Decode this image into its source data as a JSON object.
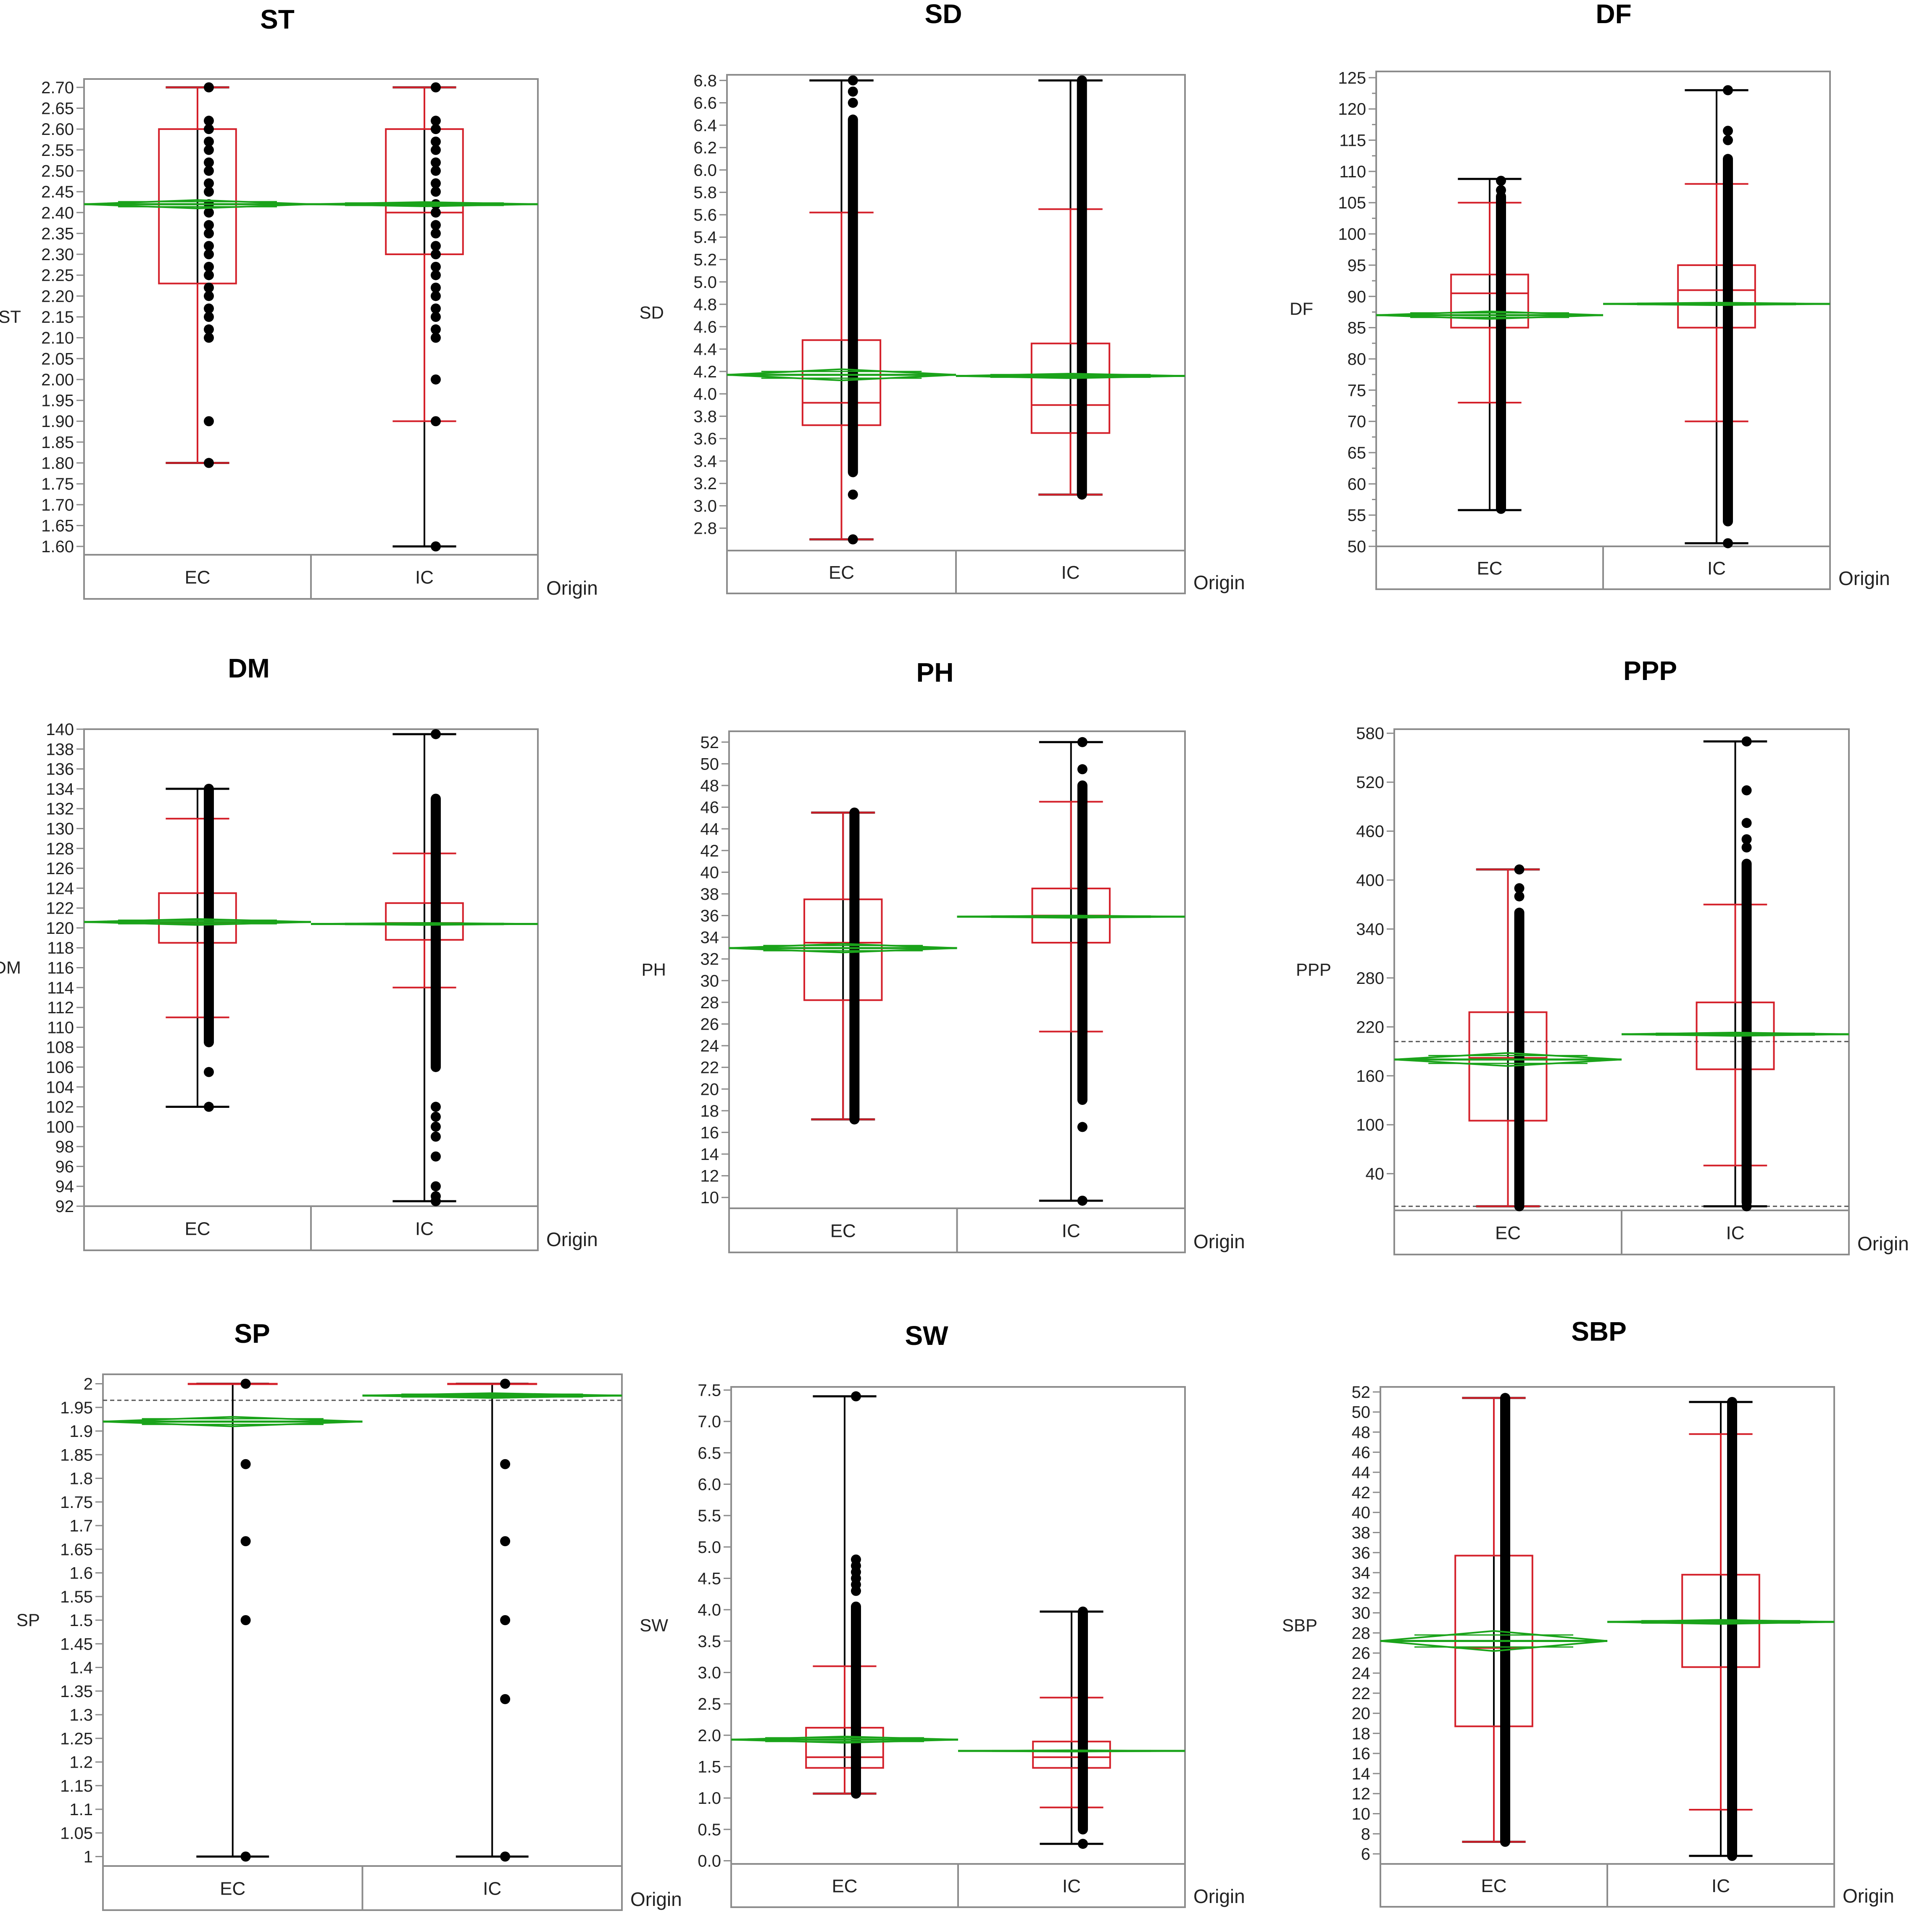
{
  "figure": {
    "group_axis_label": "Origin",
    "groups": [
      "EC",
      "IC"
    ]
  },
  "colors": {
    "box": "#d4202a",
    "whisker_box": "#d4202a",
    "whisker_outer": "#000000",
    "diamond": "#1aa31a",
    "point": "#000000",
    "frame": "#8c8c8c",
    "dashed": "#555555"
  },
  "chart_data": [
    {
      "type": "boxplot",
      "title": "ST",
      "ylabel": "ST",
      "xlabel": "Origin",
      "categories": [
        "EC",
        "IC"
      ],
      "ylim": [
        1.58,
        2.72
      ],
      "yticks": [
        1.6,
        1.65,
        1.7,
        1.75,
        1.8,
        1.85,
        1.9,
        1.95,
        2.0,
        2.05,
        2.1,
        2.15,
        2.2,
        2.25,
        2.3,
        2.35,
        2.4,
        2.45,
        2.5,
        2.55,
        2.6,
        2.65,
        2.7
      ],
      "tick_decimals": 2,
      "major_every": 1,
      "ref_lines": [],
      "series": [
        {
          "name": "EC",
          "min": 1.8,
          "q1": 2.23,
          "median": 2.42,
          "q3": 2.6,
          "max": 2.7,
          "wlow": 1.8,
          "whigh": 2.7,
          "mean": 2.42,
          "ci_low": 2.41,
          "ci_high": 2.43,
          "points": [
            1.8,
            1.9,
            2.1,
            2.12,
            2.15,
            2.17,
            2.2,
            2.22,
            2.25,
            2.27,
            2.3,
            2.32,
            2.35,
            2.37,
            2.4,
            2.42,
            2.45,
            2.47,
            2.5,
            2.52,
            2.55,
            2.57,
            2.6,
            2.62,
            2.7
          ]
        },
        {
          "name": "IC",
          "min": 1.6,
          "q1": 2.3,
          "median": 2.4,
          "q3": 2.6,
          "max": 2.7,
          "wlow": 1.9,
          "whigh": 2.7,
          "mean": 2.42,
          "ci_low": 2.415,
          "ci_high": 2.425,
          "points": [
            1.6,
            1.9,
            2.0,
            2.1,
            2.12,
            2.15,
            2.17,
            2.2,
            2.22,
            2.25,
            2.27,
            2.3,
            2.32,
            2.35,
            2.37,
            2.4,
            2.42,
            2.45,
            2.47,
            2.5,
            2.52,
            2.55,
            2.57,
            2.6,
            2.62,
            2.7
          ]
        }
      ]
    },
    {
      "type": "boxplot",
      "title": "SD",
      "ylabel": "SD",
      "xlabel": "Origin",
      "categories": [
        "EC",
        "IC"
      ],
      "ylim": [
        2.6,
        6.85
      ],
      "yticks": [
        2.8,
        3.0,
        3.2,
        3.4,
        3.6,
        3.8,
        4.0,
        4.2,
        4.4,
        4.6,
        4.8,
        5.0,
        5.2,
        5.4,
        5.6,
        5.8,
        6.0,
        6.2,
        6.4,
        6.6,
        6.8
      ],
      "tick_decimals": 1,
      "major_every": 1,
      "ref_lines": [],
      "series": [
        {
          "name": "EC",
          "min": 2.7,
          "q1": 3.72,
          "median": 3.92,
          "q3": 4.48,
          "max": 6.8,
          "wlow": 2.7,
          "whigh": 5.62,
          "mean": 4.17,
          "ci_low": 4.12,
          "ci_high": 4.22,
          "point_bands": [
            [
              3.3,
              6.45
            ]
          ],
          "points": [
            2.7,
            3.1,
            6.6,
            6.7,
            6.8
          ]
        },
        {
          "name": "IC",
          "min": 3.1,
          "q1": 3.65,
          "median": 3.9,
          "q3": 4.45,
          "max": 6.8,
          "wlow": 3.1,
          "whigh": 5.65,
          "mean": 4.16,
          "ci_low": 4.14,
          "ci_high": 4.18,
          "point_bands": [
            [
              3.1,
              6.8
            ]
          ],
          "points": []
        }
      ]
    },
    {
      "type": "boxplot",
      "title": "DF",
      "ylabel": "DF",
      "xlabel": "Origin",
      "categories": [
        "EC",
        "IC"
      ],
      "ylim": [
        50,
        126
      ],
      "yticks": [
        50,
        52.5,
        55,
        57.5,
        60,
        62.5,
        65,
        67.5,
        70,
        72.5,
        75,
        77.5,
        80,
        82.5,
        85,
        87.5,
        90,
        92.5,
        95,
        97.5,
        100,
        102.5,
        105,
        107.5,
        110,
        112.5,
        115,
        117.5,
        120,
        122.5,
        125
      ],
      "tick_decimals": 0,
      "major_every": 2,
      "ref_lines": [],
      "series": [
        {
          "name": "EC",
          "min": 55.8,
          "q1": 85,
          "median": 90.5,
          "q3": 93.5,
          "max": 108.8,
          "wlow": 73,
          "whigh": 105,
          "mean": 87,
          "ci_low": 86.4,
          "ci_high": 87.6,
          "point_bands": [
            [
              56,
              106
            ]
          ],
          "points": [
            108.5,
            107
          ]
        },
        {
          "name": "IC",
          "min": 50.5,
          "q1": 85,
          "median": 91,
          "q3": 95,
          "max": 123,
          "wlow": 70,
          "whigh": 108,
          "mean": 88.8,
          "ci_low": 88.6,
          "ci_high": 89.0,
          "point_bands": [
            [
              54,
              112
            ]
          ],
          "points": [
            115,
            116.5,
            123,
            50.5
          ]
        }
      ]
    },
    {
      "type": "boxplot",
      "title": "DM",
      "ylabel": "DM",
      "xlabel": "Origin",
      "categories": [
        "EC",
        "IC"
      ],
      "ylim": [
        92,
        140
      ],
      "yticks": [
        92,
        94,
        96,
        98,
        100,
        102,
        104,
        106,
        108,
        110,
        112,
        114,
        116,
        118,
        120,
        122,
        124,
        126,
        128,
        130,
        132,
        134,
        136,
        138,
        140
      ],
      "tick_decimals": 0,
      "major_every": 1,
      "ref_lines": [],
      "series": [
        {
          "name": "EC",
          "min": 102,
          "q1": 118.5,
          "median": 120.5,
          "q3": 123.5,
          "max": 134,
          "wlow": 111,
          "whigh": 131,
          "mean": 120.6,
          "ci_low": 120.3,
          "ci_high": 120.9,
          "point_bands": [
            [
              108.5,
              134
            ]
          ],
          "points": [
            102,
            105.5
          ]
        },
        {
          "name": "IC",
          "min": 92.5,
          "q1": 118.8,
          "median": 120.5,
          "q3": 122.5,
          "max": 139.5,
          "wlow": 114,
          "whigh": 127.5,
          "mean": 120.4,
          "ci_low": 120.3,
          "ci_high": 120.5,
          "point_bands": [
            [
              106,
              133
            ]
          ],
          "points": [
            139.5,
            100,
            101,
            102,
            99,
            97,
            94,
            93,
            92.5
          ]
        }
      ]
    },
    {
      "type": "boxplot",
      "title": "PH",
      "ylabel": "PH",
      "xlabel": "Origin",
      "categories": [
        "EC",
        "IC"
      ],
      "ylim": [
        9,
        53
      ],
      "yticks": [
        10,
        12,
        14,
        16,
        18,
        20,
        22,
        24,
        26,
        28,
        30,
        32,
        34,
        36,
        38,
        40,
        42,
        44,
        46,
        48,
        50,
        52
      ],
      "tick_decimals": 0,
      "major_every": 1,
      "ref_lines": [],
      "series": [
        {
          "name": "EC",
          "min": 17.2,
          "q1": 28.2,
          "median": 33.5,
          "q3": 37.5,
          "max": 45.5,
          "wlow": 17.2,
          "whigh": 45.5,
          "mean": 33,
          "ci_low": 32.6,
          "ci_high": 33.4,
          "point_bands": [
            [
              17.2,
              45.5
            ]
          ],
          "points": []
        },
        {
          "name": "IC",
          "min": 9.7,
          "q1": 33.5,
          "median": 36,
          "q3": 38.5,
          "max": 52,
          "wlow": 25.3,
          "whigh": 46.5,
          "mean": 35.9,
          "ci_low": 35.8,
          "ci_high": 36.0,
          "point_bands": [
            [
              19,
              48
            ]
          ],
          "points": [
            49.5,
            52,
            16.5,
            9.7
          ]
        }
      ]
    },
    {
      "type": "boxplot",
      "title": "PPP",
      "ylabel": "PPP",
      "xlabel": "Origin",
      "categories": [
        "EC",
        "IC"
      ],
      "ylim": [
        -5,
        585
      ],
      "yticks": [
        40,
        100,
        160,
        220,
        280,
        340,
        400,
        460,
        520,
        580
      ],
      "tick_decimals": 0,
      "major_every": 1,
      "ref_lines": [
        202,
        0
      ],
      "series": [
        {
          "name": "EC",
          "min": 0,
          "q1": 105,
          "median": 182,
          "q3": 238,
          "max": 413,
          "wlow": 0,
          "whigh": 413,
          "mean": 180,
          "ci_low": 172,
          "ci_high": 188,
          "point_bands": [
            [
              3,
              360
            ]
          ],
          "points": [
            380,
            390,
            413,
            0
          ]
        },
        {
          "name": "IC",
          "min": 0,
          "q1": 168,
          "median": 210,
          "q3": 250,
          "max": 570,
          "wlow": 50,
          "whigh": 370,
          "mean": 211,
          "ci_low": 209,
          "ci_high": 213,
          "point_bands": [
            [
              5,
              420
            ]
          ],
          "points": [
            440,
            450,
            470,
            510,
            570,
            0
          ]
        }
      ]
    },
    {
      "type": "boxplot",
      "title": "SP",
      "ylabel": "SP",
      "xlabel": "Origin",
      "categories": [
        "EC",
        "IC"
      ],
      "ylim": [
        0.98,
        2.02
      ],
      "yticks": [
        1,
        1.05,
        1.1,
        1.15,
        1.2,
        1.25,
        1.3,
        1.35,
        1.4,
        1.45,
        1.5,
        1.55,
        1.6,
        1.65,
        1.7,
        1.75,
        1.8,
        1.85,
        1.9,
        1.95,
        2
      ],
      "tick_decimals": -1,
      "major_every": 1,
      "ref_lines": [
        1.965
      ],
      "series": [
        {
          "name": "EC",
          "min": 1,
          "q1": 2,
          "median": 2,
          "q3": 2,
          "max": 2,
          "wlow": 2,
          "whigh": 2,
          "mean": 1.92,
          "ci_low": 1.91,
          "ci_high": 1.93,
          "points": [
            2,
            1.83,
            1.667,
            1.5,
            1
          ]
        },
        {
          "name": "IC",
          "min": 1,
          "q1": 2,
          "median": 2,
          "q3": 2,
          "max": 2,
          "wlow": 2,
          "whigh": 2,
          "mean": 1.975,
          "ci_low": 1.97,
          "ci_high": 1.98,
          "points": [
            2,
            1.83,
            1.667,
            1.5,
            1.333,
            1
          ]
        }
      ]
    },
    {
      "type": "boxplot",
      "title": "SW",
      "ylabel": "SW",
      "xlabel": "Origin",
      "categories": [
        "EC",
        "IC"
      ],
      "ylim": [
        -0.05,
        7.55
      ],
      "yticks": [
        0.0,
        0.5,
        1.0,
        1.5,
        2.0,
        2.5,
        3.0,
        3.5,
        4.0,
        4.5,
        5.0,
        5.5,
        6.0,
        6.5,
        7.0,
        7.5
      ],
      "tick_decimals": 1,
      "major_every": 1,
      "ref_lines": [],
      "series": [
        {
          "name": "EC",
          "min": 1.07,
          "q1": 1.48,
          "median": 1.65,
          "q3": 2.12,
          "max": 7.4,
          "wlow": 1.07,
          "whigh": 3.1,
          "mean": 1.93,
          "ci_low": 1.88,
          "ci_high": 1.98,
          "point_bands": [
            [
              1.07,
              4.05
            ]
          ],
          "points": [
            4.3,
            4.4,
            4.5,
            4.6,
            4.7,
            4.8,
            7.4
          ]
        },
        {
          "name": "IC",
          "min": 0.27,
          "q1": 1.48,
          "median": 1.65,
          "q3": 1.9,
          "max": 3.97,
          "wlow": 0.85,
          "whigh": 2.6,
          "mean": 1.75,
          "ci_low": 1.74,
          "ci_high": 1.76,
          "point_bands": [
            [
              0.5,
              3.97
            ]
          ],
          "points": [
            0.27
          ]
        }
      ]
    },
    {
      "type": "boxplot",
      "title": "SBP",
      "ylabel": "SBP",
      "xlabel": "Origin",
      "categories": [
        "EC",
        "IC"
      ],
      "ylim": [
        5,
        52.5
      ],
      "yticks": [
        6,
        8,
        10,
        12,
        14,
        16,
        18,
        20,
        22,
        24,
        26,
        28,
        30,
        32,
        34,
        36,
        38,
        40,
        42,
        44,
        46,
        48,
        50,
        52
      ],
      "tick_decimals": 0,
      "major_every": 1,
      "ref_lines": [],
      "series": [
        {
          "name": "EC",
          "min": 7.2,
          "q1": 18.7,
          "median": 26.5,
          "q3": 35.7,
          "max": 51.4,
          "wlow": 7.2,
          "whigh": 51.4,
          "mean": 27.2,
          "ci_low": 26.2,
          "ci_high": 28.2,
          "point_bands": [
            [
              7.2,
              51.4
            ]
          ],
          "points": []
        },
        {
          "name": "IC",
          "min": 5.8,
          "q1": 24.6,
          "median": 29.2,
          "q3": 33.8,
          "max": 51,
          "wlow": 10.4,
          "whigh": 47.8,
          "mean": 29.1,
          "ci_low": 28.9,
          "ci_high": 29.3,
          "point_bands": [
            [
              5.8,
              51
            ]
          ],
          "points": []
        }
      ]
    }
  ]
}
